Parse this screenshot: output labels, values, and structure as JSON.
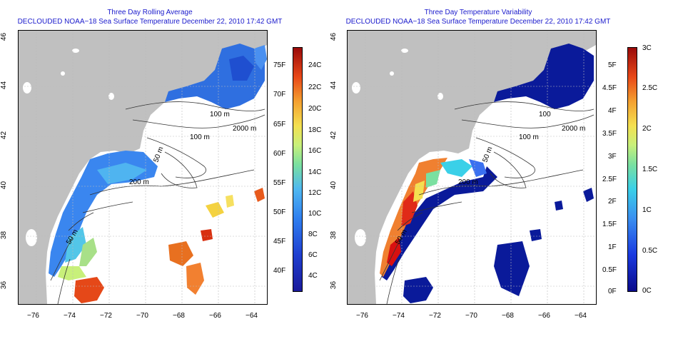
{
  "left": {
    "title_line1": "Three Day Rolling Average",
    "title_line2": "DECLOUDED NOAA−18 Sea Surface Temperature December 22, 2010 17:42 GMT",
    "colorbar_left_labels": [
      "75F",
      "70F",
      "65F",
      "60F",
      "55F",
      "50F",
      "45F",
      "40F"
    ],
    "colorbar_right_labels": [
      "24C",
      "22C",
      "20C",
      "18C",
      "16C",
      "14C",
      "12C",
      "10C",
      "8C",
      "6C",
      "4C"
    ],
    "contours": [
      "100 m",
      "2000 m",
      "100 m",
      "50 m",
      "200 m",
      "50 m"
    ]
  },
  "right": {
    "title_line1": "Three Day Temperature Variability",
    "title_line2": "DECLOUDED NOAA−18 Sea Surface Temperature December 22, 2010 17:42 GMT",
    "colorbar_left_labels": [
      "5F",
      "4.5F",
      "4F",
      "3.5F",
      "3F",
      "2.5F",
      "2F",
      "1.5F",
      "1F",
      "0.5F",
      "0F"
    ],
    "colorbar_right_labels": [
      "3C",
      "2.5C",
      "2C",
      "1.5C",
      "1C",
      "0.5C",
      "0C"
    ],
    "contours": [
      "100",
      "2000 m",
      "100 m",
      "50 m",
      "200 m",
      "50 m"
    ]
  },
  "x_ticks": [
    "−76",
    "−74",
    "−72",
    "−70",
    "−68",
    "−66",
    "−64"
  ],
  "y_ticks": [
    "46",
    "44",
    "42",
    "40",
    "38",
    "36"
  ],
  "colors": {
    "title": "#1a1acc",
    "land": "#c0c0c0",
    "ocean": "#ffffff"
  }
}
